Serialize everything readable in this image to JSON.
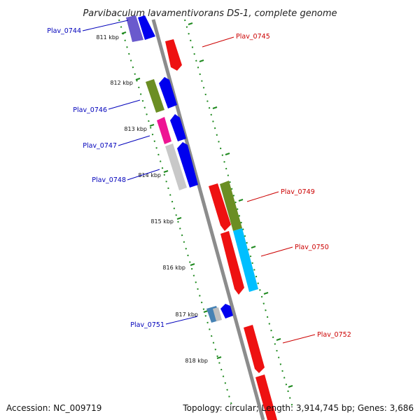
{
  "title": "Parvibaculum lavamentivorans DS-1, complete genome",
  "footer": {
    "accession": "Accession: NC_009719",
    "stats": "Topology: circular; Length: 3,914,745 bp; Genes: 3,686"
  },
  "colors": {
    "backbone": "#8c8c8c",
    "dots": "#1f8a1f",
    "forward_label": "#0000bb",
    "reverse_label": "#cc0000"
  },
  "ticks": [
    {
      "label": "811 kbp"
    },
    {
      "label": "812 kbp"
    },
    {
      "label": "813 kbp"
    },
    {
      "label": "814 kbp"
    },
    {
      "label": "815 kbp"
    },
    {
      "label": "816 kbp"
    },
    {
      "label": "817 kbp"
    },
    {
      "label": "818 kbp"
    }
  ],
  "labels": [
    {
      "text": "Plav_0744",
      "strand": "forward"
    },
    {
      "text": "Plav_0745",
      "strand": "reverse"
    },
    {
      "text": "Plav_0746",
      "strand": "forward"
    },
    {
      "text": "Plav_0747",
      "strand": "forward"
    },
    {
      "text": "Plav_0748",
      "strand": "forward"
    },
    {
      "text": "Plav_0749",
      "strand": "reverse"
    },
    {
      "text": "Plav_0750",
      "strand": "reverse"
    },
    {
      "text": "Plav_0751",
      "strand": "forward"
    },
    {
      "text": "Plav_0752",
      "strand": "reverse"
    }
  ]
}
